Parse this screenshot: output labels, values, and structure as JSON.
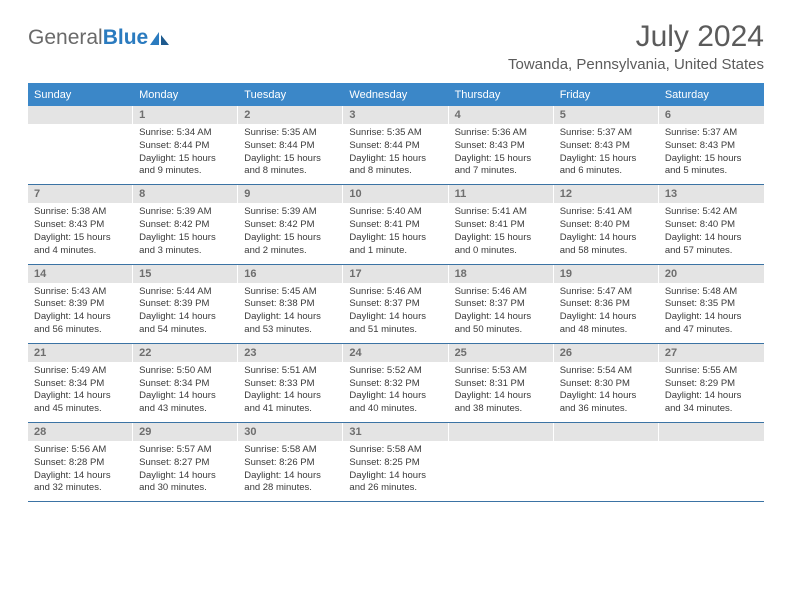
{
  "logo": {
    "part1": "General",
    "part2": "Blue"
  },
  "title": "July 2024",
  "location": "Towanda, Pennsylvania, United States",
  "colors": {
    "header_bg": "#3b87c8",
    "header_text": "#ffffff",
    "daynum_bg": "#e4e4e4",
    "daynum_text": "#6e6e6e",
    "body_text": "#3a3a3a",
    "rule": "#3b73a4",
    "logo_gray": "#6a6a6a",
    "logo_blue": "#2b7bbf"
  },
  "day_headers": [
    "Sunday",
    "Monday",
    "Tuesday",
    "Wednesday",
    "Thursday",
    "Friday",
    "Saturday"
  ],
  "weeks": [
    [
      {
        "num": "",
        "lines": []
      },
      {
        "num": "1",
        "lines": [
          "Sunrise: 5:34 AM",
          "Sunset: 8:44 PM",
          "Daylight: 15 hours and 9 minutes."
        ]
      },
      {
        "num": "2",
        "lines": [
          "Sunrise: 5:35 AM",
          "Sunset: 8:44 PM",
          "Daylight: 15 hours and 8 minutes."
        ]
      },
      {
        "num": "3",
        "lines": [
          "Sunrise: 5:35 AM",
          "Sunset: 8:44 PM",
          "Daylight: 15 hours and 8 minutes."
        ]
      },
      {
        "num": "4",
        "lines": [
          "Sunrise: 5:36 AM",
          "Sunset: 8:43 PM",
          "Daylight: 15 hours and 7 minutes."
        ]
      },
      {
        "num": "5",
        "lines": [
          "Sunrise: 5:37 AM",
          "Sunset: 8:43 PM",
          "Daylight: 15 hours and 6 minutes."
        ]
      },
      {
        "num": "6",
        "lines": [
          "Sunrise: 5:37 AM",
          "Sunset: 8:43 PM",
          "Daylight: 15 hours and 5 minutes."
        ]
      }
    ],
    [
      {
        "num": "7",
        "lines": [
          "Sunrise: 5:38 AM",
          "Sunset: 8:43 PM",
          "Daylight: 15 hours and 4 minutes."
        ]
      },
      {
        "num": "8",
        "lines": [
          "Sunrise: 5:39 AM",
          "Sunset: 8:42 PM",
          "Daylight: 15 hours and 3 minutes."
        ]
      },
      {
        "num": "9",
        "lines": [
          "Sunrise: 5:39 AM",
          "Sunset: 8:42 PM",
          "Daylight: 15 hours and 2 minutes."
        ]
      },
      {
        "num": "10",
        "lines": [
          "Sunrise: 5:40 AM",
          "Sunset: 8:41 PM",
          "Daylight: 15 hours and 1 minute."
        ]
      },
      {
        "num": "11",
        "lines": [
          "Sunrise: 5:41 AM",
          "Sunset: 8:41 PM",
          "Daylight: 15 hours and 0 minutes."
        ]
      },
      {
        "num": "12",
        "lines": [
          "Sunrise: 5:41 AM",
          "Sunset: 8:40 PM",
          "Daylight: 14 hours and 58 minutes."
        ]
      },
      {
        "num": "13",
        "lines": [
          "Sunrise: 5:42 AM",
          "Sunset: 8:40 PM",
          "Daylight: 14 hours and 57 minutes."
        ]
      }
    ],
    [
      {
        "num": "14",
        "lines": [
          "Sunrise: 5:43 AM",
          "Sunset: 8:39 PM",
          "Daylight: 14 hours and 56 minutes."
        ]
      },
      {
        "num": "15",
        "lines": [
          "Sunrise: 5:44 AM",
          "Sunset: 8:39 PM",
          "Daylight: 14 hours and 54 minutes."
        ]
      },
      {
        "num": "16",
        "lines": [
          "Sunrise: 5:45 AM",
          "Sunset: 8:38 PM",
          "Daylight: 14 hours and 53 minutes."
        ]
      },
      {
        "num": "17",
        "lines": [
          "Sunrise: 5:46 AM",
          "Sunset: 8:37 PM",
          "Daylight: 14 hours and 51 minutes."
        ]
      },
      {
        "num": "18",
        "lines": [
          "Sunrise: 5:46 AM",
          "Sunset: 8:37 PM",
          "Daylight: 14 hours and 50 minutes."
        ]
      },
      {
        "num": "19",
        "lines": [
          "Sunrise: 5:47 AM",
          "Sunset: 8:36 PM",
          "Daylight: 14 hours and 48 minutes."
        ]
      },
      {
        "num": "20",
        "lines": [
          "Sunrise: 5:48 AM",
          "Sunset: 8:35 PM",
          "Daylight: 14 hours and 47 minutes."
        ]
      }
    ],
    [
      {
        "num": "21",
        "lines": [
          "Sunrise: 5:49 AM",
          "Sunset: 8:34 PM",
          "Daylight: 14 hours and 45 minutes."
        ]
      },
      {
        "num": "22",
        "lines": [
          "Sunrise: 5:50 AM",
          "Sunset: 8:34 PM",
          "Daylight: 14 hours and 43 minutes."
        ]
      },
      {
        "num": "23",
        "lines": [
          "Sunrise: 5:51 AM",
          "Sunset: 8:33 PM",
          "Daylight: 14 hours and 41 minutes."
        ]
      },
      {
        "num": "24",
        "lines": [
          "Sunrise: 5:52 AM",
          "Sunset: 8:32 PM",
          "Daylight: 14 hours and 40 minutes."
        ]
      },
      {
        "num": "25",
        "lines": [
          "Sunrise: 5:53 AM",
          "Sunset: 8:31 PM",
          "Daylight: 14 hours and 38 minutes."
        ]
      },
      {
        "num": "26",
        "lines": [
          "Sunrise: 5:54 AM",
          "Sunset: 8:30 PM",
          "Daylight: 14 hours and 36 minutes."
        ]
      },
      {
        "num": "27",
        "lines": [
          "Sunrise: 5:55 AM",
          "Sunset: 8:29 PM",
          "Daylight: 14 hours and 34 minutes."
        ]
      }
    ],
    [
      {
        "num": "28",
        "lines": [
          "Sunrise: 5:56 AM",
          "Sunset: 8:28 PM",
          "Daylight: 14 hours and 32 minutes."
        ]
      },
      {
        "num": "29",
        "lines": [
          "Sunrise: 5:57 AM",
          "Sunset: 8:27 PM",
          "Daylight: 14 hours and 30 minutes."
        ]
      },
      {
        "num": "30",
        "lines": [
          "Sunrise: 5:58 AM",
          "Sunset: 8:26 PM",
          "Daylight: 14 hours and 28 minutes."
        ]
      },
      {
        "num": "31",
        "lines": [
          "Sunrise: 5:58 AM",
          "Sunset: 8:25 PM",
          "Daylight: 14 hours and 26 minutes."
        ]
      },
      {
        "num": "",
        "lines": []
      },
      {
        "num": "",
        "lines": []
      },
      {
        "num": "",
        "lines": []
      }
    ]
  ]
}
